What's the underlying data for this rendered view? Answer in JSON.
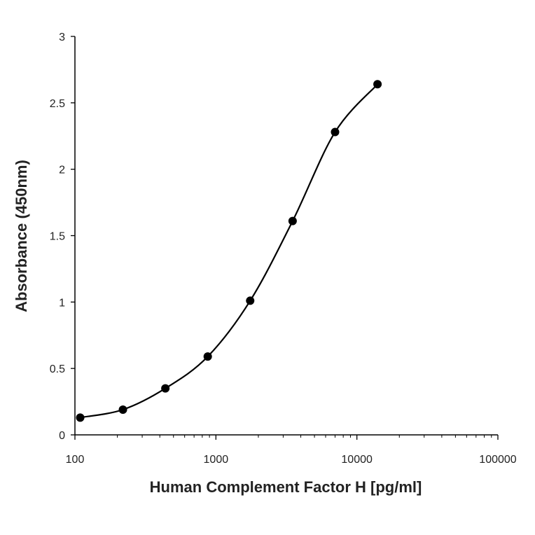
{
  "chart_data": {
    "type": "scatter",
    "title": "",
    "xlabel": "Human Complement Factor H [pg/ml]",
    "ylabel": "Absorbance (450nm)",
    "x_scale": "log",
    "xlim": [
      100,
      100000
    ],
    "ylim": [
      0,
      3
    ],
    "x_ticks": [
      100,
      1000,
      10000,
      100000
    ],
    "x_tick_labels": [
      "100",
      "1000",
      "10000",
      "100000"
    ],
    "y_ticks": [
      0,
      0.5,
      1,
      1.5,
      2,
      2.5,
      3
    ],
    "y_tick_labels": [
      "0",
      "0.5",
      "1",
      "1.5",
      "2",
      "2.5",
      "3"
    ],
    "grid": false,
    "legend": "none",
    "marker_color": "#000000",
    "line_color": "#000000",
    "smooth_line": true,
    "series": [
      {
        "x": [
          109,
          219,
          438,
          875,
          1750,
          3500,
          7000,
          14000
        ],
        "y": [
          0.13,
          0.19,
          0.35,
          0.59,
          1.01,
          1.61,
          2.28,
          2.64
        ]
      }
    ]
  }
}
